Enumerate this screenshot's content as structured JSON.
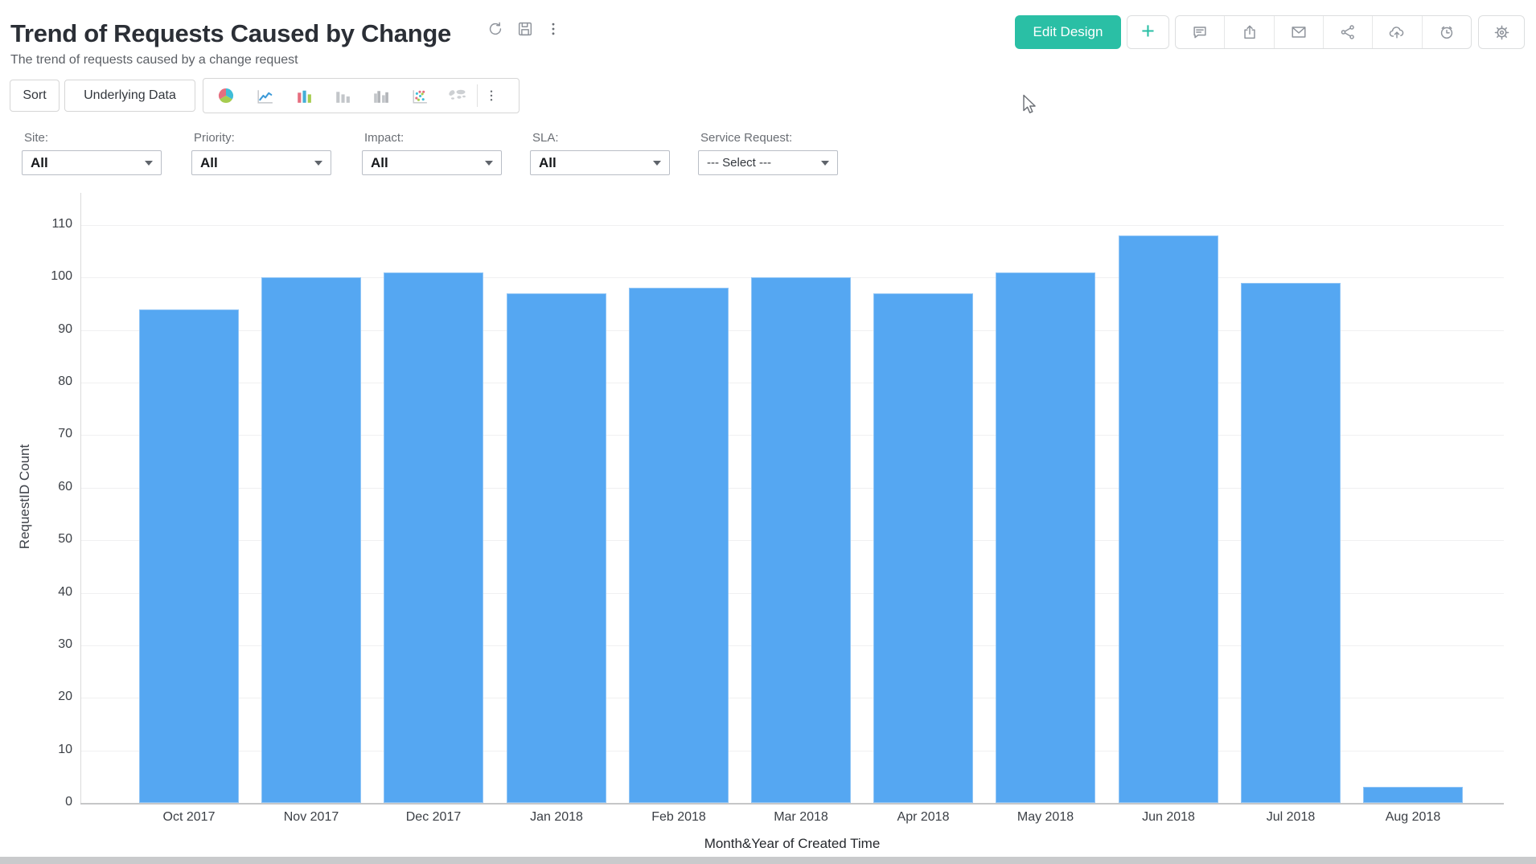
{
  "header": {
    "title": "Trend of Requests Caused by Change",
    "subtitle": "The trend of requests caused by a change request"
  },
  "actions": {
    "edit_design_label": "Edit Design",
    "add_label": "+"
  },
  "toolbar": {
    "sort_label": "Sort",
    "underlying_data_label": "Underlying Data"
  },
  "icons": {
    "title_bar": [
      "refresh-icon",
      "save-icon",
      "more-options-icon"
    ],
    "header_actions": [
      "comment-icon",
      "export-icon",
      "email-icon",
      "share-icon",
      "cloud-upload-icon",
      "history-icon",
      "settings-gear-icon"
    ],
    "chart_types": [
      "pie-chart-icon",
      "line-chart-icon",
      "bar-chart-icon",
      "stacked-bar-chart-icon",
      "combo-bar-chart-icon",
      "scatter-chart-icon",
      "map-chart-icon",
      "more-chart-types-icon"
    ]
  },
  "filters": [
    {
      "label": "Site:",
      "value": "All"
    },
    {
      "label": "Priority:",
      "value": "All"
    },
    {
      "label": "Impact:",
      "value": "All"
    },
    {
      "label": "SLA:",
      "value": "All"
    },
    {
      "label": "Service Request:",
      "value": "--- Select ---"
    }
  ],
  "colors": {
    "accent_teal": "#2abfa5",
    "bar_blue": "#55a7f2"
  },
  "chart_data": {
    "type": "bar",
    "title": "Trend of Requests Caused by Change",
    "categories": [
      "Oct 2017",
      "Nov 2017",
      "Dec 2017",
      "Jan 2018",
      "Feb 2018",
      "Mar 2018",
      "Apr 2018",
      "May 2018",
      "Jun 2018",
      "Jul 2018",
      "Aug 2018"
    ],
    "values": [
      94,
      100,
      101,
      97,
      98,
      100,
      97,
      101,
      108,
      99,
      3
    ],
    "xlabel": "Month&Year of Created Time",
    "ylabel": "RequestID Count",
    "ylim": [
      0,
      110
    ],
    "ytick_step": 10,
    "bar_color": "#55a7f2",
    "grid": true,
    "legend": false
  }
}
